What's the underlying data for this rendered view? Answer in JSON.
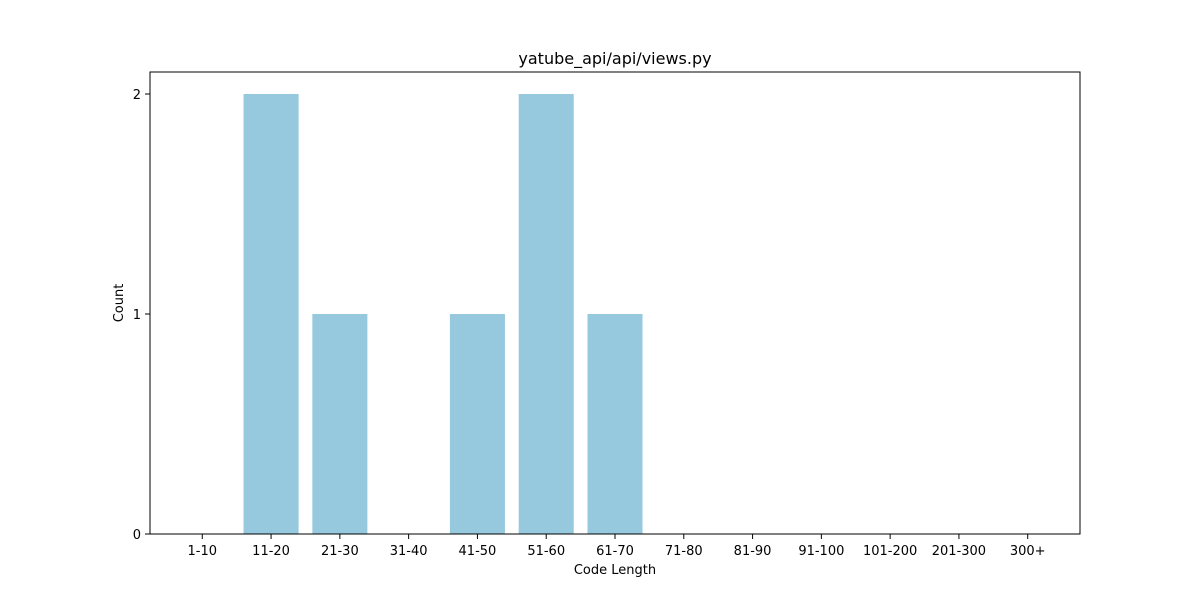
{
  "chart_data": {
    "type": "bar",
    "title": "yatube_api/api/views.py",
    "xlabel": "Code Length",
    "ylabel": "Count",
    "categories": [
      "1-10",
      "11-20",
      "21-30",
      "31-40",
      "41-50",
      "51-60",
      "61-70",
      "71-80",
      "81-90",
      "91-100",
      "101-200",
      "201-300",
      "300+"
    ],
    "values": [
      0,
      2,
      1,
      0,
      1,
      2,
      1,
      0,
      0,
      0,
      0,
      0,
      0
    ],
    "ylim": [
      0,
      2.1
    ],
    "yticks": [
      0,
      1,
      2
    ],
    "bar_color": "#96c9dd",
    "grid": false,
    "legend": "none"
  }
}
